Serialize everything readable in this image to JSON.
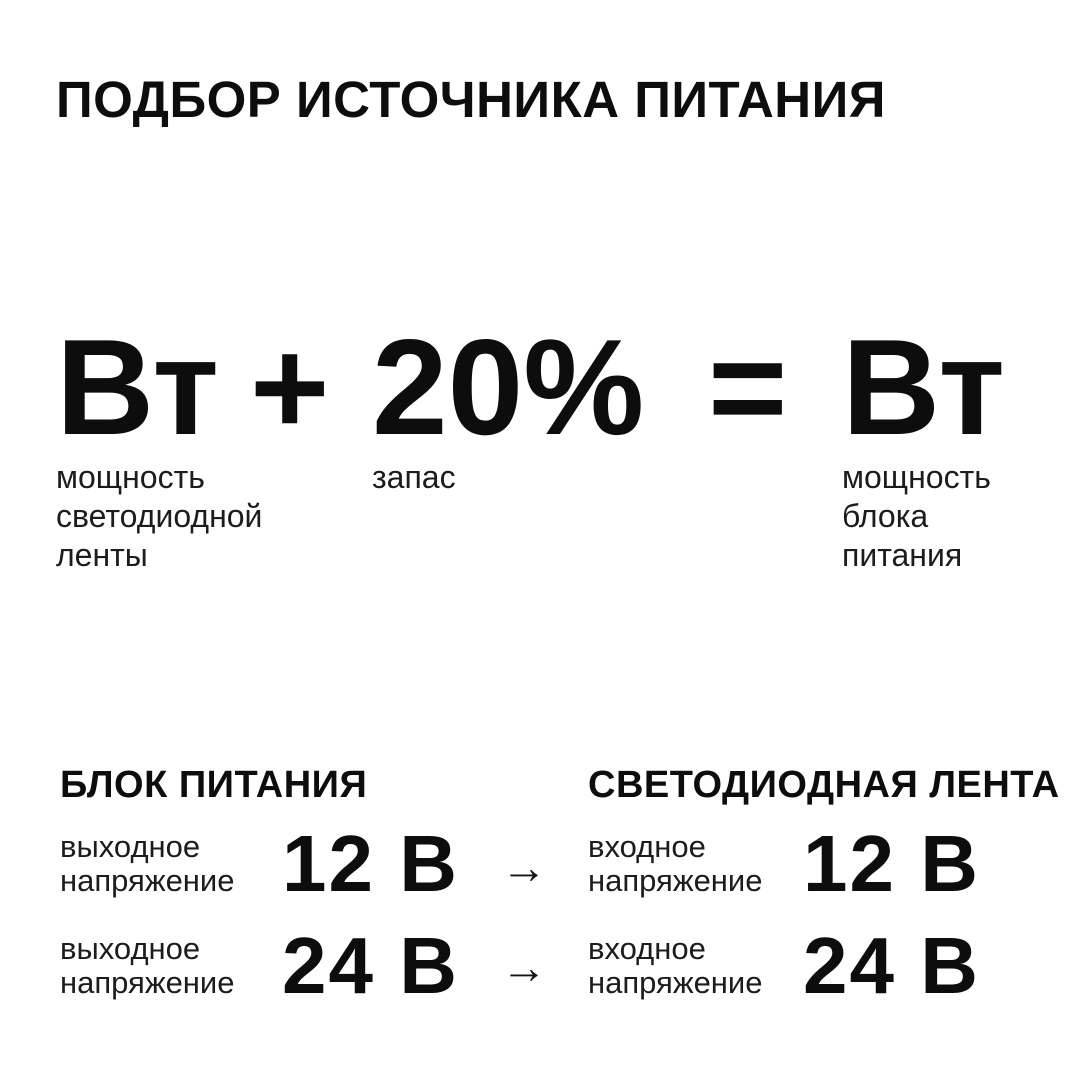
{
  "canvas": {
    "background": "#ffffff",
    "text_color": "#0d0d0d"
  },
  "title": "ПОДБОР ИСТОЧНИКА ПИТАНИЯ",
  "formula": {
    "term_strip": {
      "value": "Вт",
      "label": "мощность\nсветодиодной\nленты"
    },
    "plus_sign": "+",
    "term_reserve": {
      "value": "20%",
      "label": "запас"
    },
    "equals_sign": "=",
    "term_psu": {
      "value": "Вт",
      "label": "мощность\nблока\nпитания"
    }
  },
  "voltage_table": {
    "arrow": "→",
    "psu_column": {
      "heading": "БЛОК ПИТАНИЯ",
      "rows": [
        {
          "label": "выходное\nнапряжение",
          "value": "12 В"
        },
        {
          "label": "выходное\nнапряжение",
          "value": "24 В"
        }
      ]
    },
    "strip_column": {
      "heading": "СВЕТОДИОДНАЯ ЛЕНТА",
      "rows": [
        {
          "label": "входное\nнапряжение",
          "value": "12 В"
        },
        {
          "label": "входное\nнапряжение",
          "value": "24 В"
        }
      ]
    }
  }
}
